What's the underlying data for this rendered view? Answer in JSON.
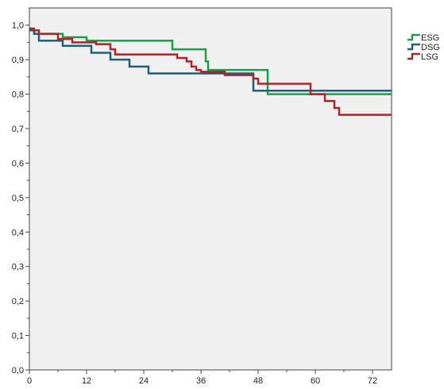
{
  "chart_data": {
    "type": "line",
    "step": true,
    "title": "",
    "xlabel": "",
    "ylabel": "",
    "xlim": [
      0,
      76
    ],
    "ylim": [
      0,
      1.05
    ],
    "x_ticks": [
      0,
      12,
      24,
      36,
      48,
      60,
      72
    ],
    "x_tick_labels": [
      "0",
      "12",
      "24",
      "36",
      "48",
      "60",
      "72"
    ],
    "y_ticks": [
      0,
      0.1,
      0.2,
      0.3,
      0.4,
      0.5,
      0.6,
      0.7,
      0.8,
      0.9,
      1.0
    ],
    "y_tick_labels": [
      "0,0",
      "0,1",
      "0,2",
      "0,3",
      "0,4",
      "0,5",
      "0,6",
      "0,7",
      "0,8",
      "0,9",
      "1,0"
    ],
    "grid": false,
    "legend_position": "right-top",
    "plot_background": "#f0f0f0",
    "series": [
      {
        "name": "ESG",
        "color": "#1e9e4a",
        "points": [
          [
            0,
            0.99
          ],
          [
            0.5,
            0.985
          ],
          [
            1,
            0.975
          ],
          [
            7,
            0.965
          ],
          [
            12,
            0.955
          ],
          [
            30,
            0.93
          ],
          [
            37,
            0.895
          ],
          [
            37.5,
            0.87
          ],
          [
            50,
            0.8
          ],
          [
            76,
            0.8
          ]
        ]
      },
      {
        "name": "DSG",
        "color": "#1e5f7a",
        "points": [
          [
            0,
            0.985
          ],
          [
            1,
            0.975
          ],
          [
            2,
            0.955
          ],
          [
            7,
            0.94
          ],
          [
            13,
            0.92
          ],
          [
            17,
            0.9
          ],
          [
            21,
            0.88
          ],
          [
            25,
            0.86
          ],
          [
            47,
            0.81
          ],
          [
            76,
            0.81
          ]
        ]
      },
      {
        "name": "LSG",
        "color": "#a8262a",
        "points": [
          [
            0,
            0.99
          ],
          [
            1,
            0.985
          ],
          [
            2,
            0.975
          ],
          [
            6,
            0.96
          ],
          [
            9,
            0.95
          ],
          [
            14,
            0.945
          ],
          [
            17,
            0.93
          ],
          [
            18,
            0.915
          ],
          [
            31,
            0.905
          ],
          [
            33,
            0.895
          ],
          [
            34,
            0.88
          ],
          [
            35,
            0.87
          ],
          [
            36,
            0.865
          ],
          [
            41,
            0.855
          ],
          [
            47,
            0.845
          ],
          [
            48,
            0.83
          ],
          [
            59,
            0.8
          ],
          [
            62,
            0.78
          ],
          [
            64,
            0.76
          ],
          [
            65,
            0.74
          ],
          [
            76,
            0.74
          ]
        ]
      }
    ]
  }
}
